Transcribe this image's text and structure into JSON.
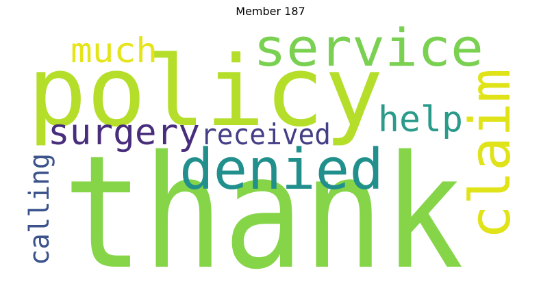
{
  "title": "Member 187",
  "words": [
    {
      "text": "thank",
      "color": "#86d549"
    },
    {
      "text": "policy",
      "color": "#b5de2b"
    },
    {
      "text": "denied",
      "color": "#21908d"
    },
    {
      "text": "service",
      "color": "#7ad151"
    },
    {
      "text": "claim",
      "color": "#dfe318"
    },
    {
      "text": "surgery",
      "color": "#472d7b"
    },
    {
      "text": "much",
      "color": "#e5e419"
    },
    {
      "text": "help",
      "color": "#2a9a8b"
    },
    {
      "text": "received",
      "color": "#433e85"
    },
    {
      "text": "calling",
      "color": "#3b528b"
    }
  ]
}
